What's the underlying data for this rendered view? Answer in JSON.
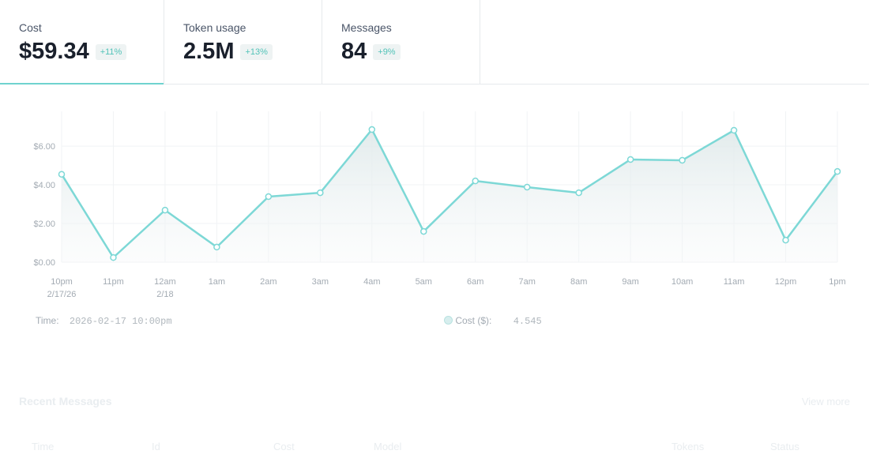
{
  "stats": [
    {
      "title": "Cost",
      "value": "$59.34",
      "change": "+11%"
    },
    {
      "title": "Token usage",
      "value": "2.5M",
      "change": "+13%"
    },
    {
      "title": "Messages",
      "value": "84",
      "change": "+9%"
    }
  ],
  "chart_data": {
    "type": "line",
    "categories": [
      "10pm",
      "11pm",
      "12am",
      "1am",
      "2am",
      "3am",
      "4am",
      "5am",
      "6am",
      "7am",
      "8am",
      "9am",
      "10am",
      "11am",
      "12pm",
      "1pm"
    ],
    "sublabels": [
      "2/17/26",
      null,
      "2/18",
      null,
      null,
      null,
      null,
      null,
      null,
      null,
      null,
      null,
      null,
      null,
      null,
      null
    ],
    "series": [
      {
        "color": "#7dd8d6",
        "values": [
          4.545,
          0.24,
          2.69,
          0.78,
          3.39,
          3.59,
          6.86,
          1.59,
          4.2,
          3.88,
          3.59,
          5.31,
          5.27,
          6.82,
          1.14,
          4.69
        ]
      }
    ],
    "ylim": [
      0,
      7.8
    ],
    "yticks": [
      {
        "value": 0,
        "label": "$0.00"
      },
      {
        "value": 2,
        "label": "$2.00"
      },
      {
        "value": 4,
        "label": "$4.00"
      },
      {
        "value": 6,
        "label": "$6.00"
      }
    ],
    "grid": true
  },
  "hover": {
    "time_label": "Time:",
    "time": "2026-02-17 10:00pm",
    "series_label": "Cost ($):"
  },
  "recent": {
    "title": "Recent Messages",
    "link": "View more",
    "columns": [
      "Time",
      "Id",
      "Cost",
      "Model",
      "Tokens",
      "Status"
    ]
  }
}
